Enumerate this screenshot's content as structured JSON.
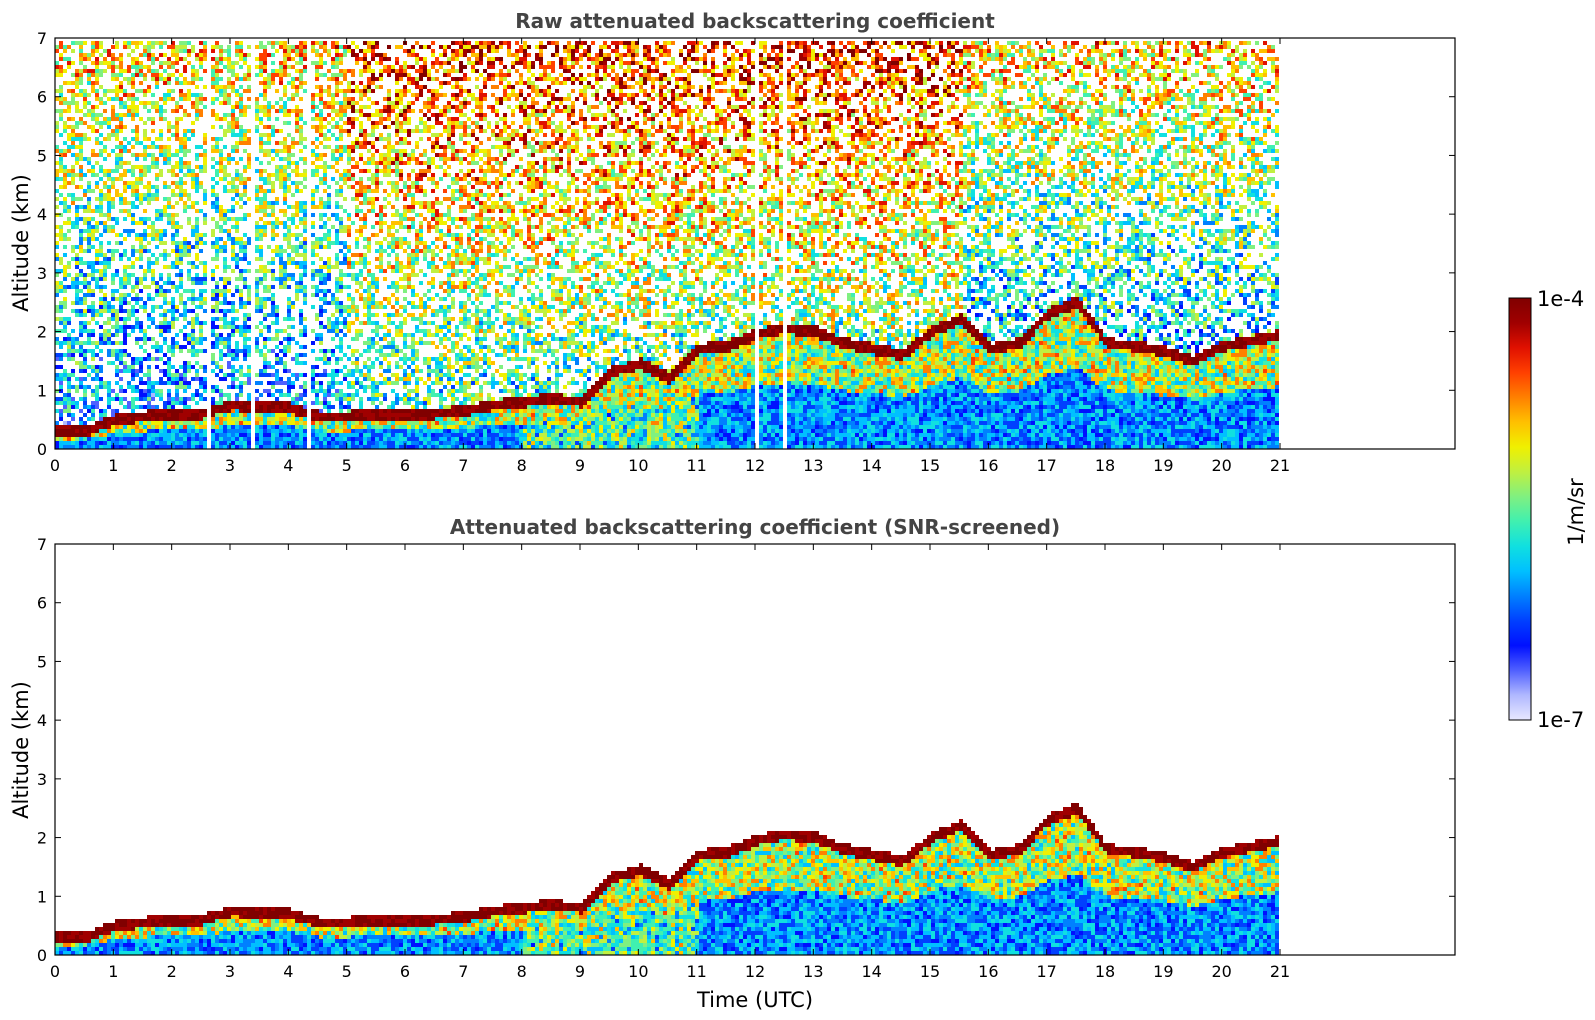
{
  "chart_data": [
    {
      "type": "heatmap",
      "title": "Raw attenuated backscattering coefficient",
      "xlabel": "",
      "ylabel": "Altitude (km)",
      "xlim": [
        0,
        24
      ],
      "ylim": [
        0,
        7
      ],
      "x_ticks": [
        "0",
        "1",
        "2",
        "3",
        "4",
        "5",
        "6",
        "7",
        "8",
        "9",
        "10",
        "11",
        "12",
        "13",
        "14",
        "15",
        "16",
        "17",
        "18",
        "19",
        "20",
        "21"
      ],
      "y_ticks": [
        "0",
        "1",
        "2",
        "3",
        "4",
        "5",
        "6",
        "7"
      ],
      "data_extent_hours": [
        0,
        21
      ],
      "noise_level": "high",
      "layer_top_km": {
        "x": [
          0,
          0.5,
          1,
          1.5,
          2,
          2.5,
          3,
          3.5,
          4,
          4.5,
          5,
          5.5,
          6,
          6.5,
          7,
          7.5,
          8,
          8.5,
          9,
          9.5,
          10,
          10.5,
          11,
          11.5,
          12,
          12.5,
          13,
          13.5,
          14,
          14.5,
          15,
          15.5,
          16,
          16.5,
          17,
          17.5,
          18,
          18.5,
          19,
          19.5,
          20,
          20.5,
          21
        ],
        "y": [
          0.3,
          0.3,
          0.5,
          0.55,
          0.6,
          0.6,
          0.75,
          0.7,
          0.7,
          0.55,
          0.55,
          0.6,
          0.6,
          0.6,
          0.65,
          0.75,
          0.8,
          0.85,
          0.8,
          1.3,
          1.45,
          1.2,
          1.7,
          1.75,
          1.95,
          2.05,
          2.0,
          1.8,
          1.7,
          1.6,
          2.0,
          2.2,
          1.7,
          1.8,
          2.3,
          2.5,
          1.8,
          1.75,
          1.65,
          1.5,
          1.75,
          1.85,
          1.95
        ]
      }
    },
    {
      "type": "heatmap",
      "title": "Attenuated backscattering coefficient (SNR-screened)",
      "xlabel": "Time (UTC)",
      "ylabel": "Altitude (km)",
      "xlim": [
        0,
        24
      ],
      "ylim": [
        0,
        7
      ],
      "x_ticks": [
        "0",
        "1",
        "2",
        "3",
        "4",
        "5",
        "6",
        "7",
        "8",
        "9",
        "10",
        "11",
        "12",
        "13",
        "14",
        "15",
        "16",
        "17",
        "18",
        "19",
        "20",
        "21"
      ],
      "y_ticks": [
        "0",
        "1",
        "2",
        "3",
        "4",
        "5",
        "6",
        "7"
      ],
      "data_extent_hours": [
        0,
        21
      ],
      "noise_level": "screened"
    }
  ],
  "colorbar": {
    "label": "1/m/sr",
    "min_label": "1e-7",
    "max_label": "1e-4",
    "colors": [
      "#e8e8ff",
      "#b0b8ff",
      "#5060ff",
      "#0010ff",
      "#0040ff",
      "#0080ff",
      "#00c0ff",
      "#10e0e0",
      "#40f0b0",
      "#80f080",
      "#c0f040",
      "#f0f000",
      "#ffc000",
      "#ff8000",
      "#ff4000",
      "#e01000",
      "#a00000",
      "#800000"
    ]
  }
}
